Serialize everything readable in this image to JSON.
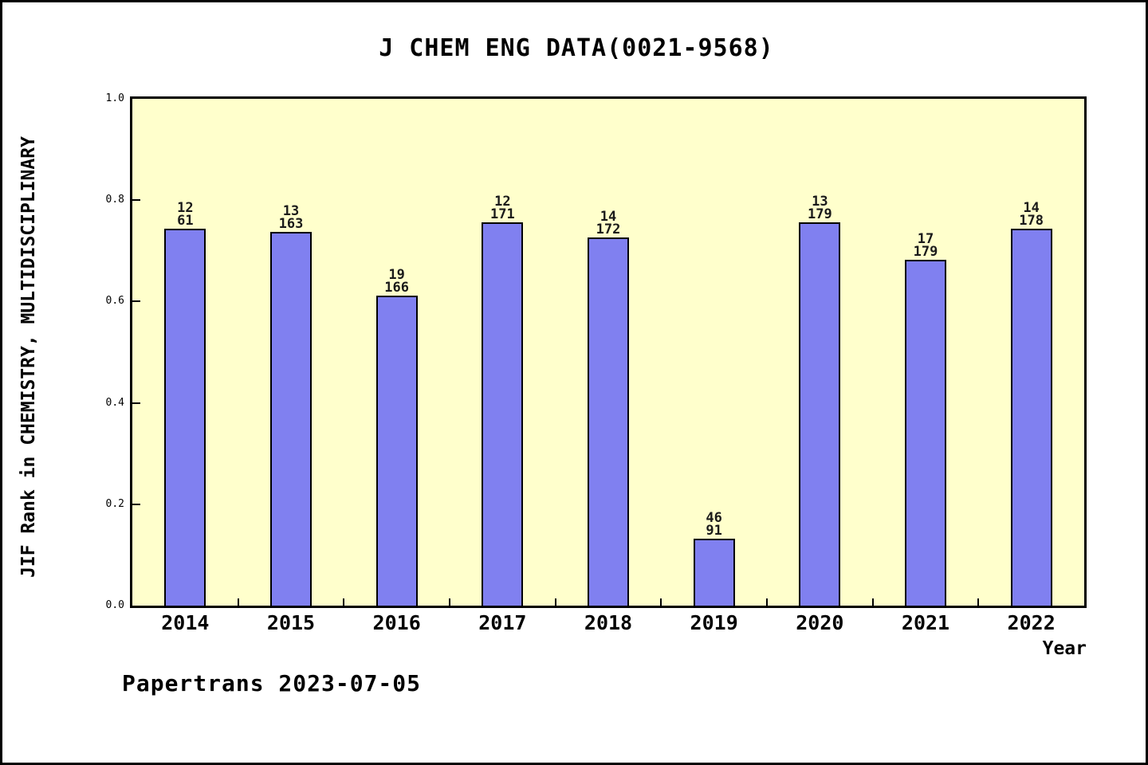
{
  "title": "J CHEM ENG DATA(0021-9568)",
  "footer": "Papertrans 2023-07-05",
  "colors": {
    "page_bg": "#ffffff",
    "frame": "#000000",
    "plot_bg": "#ffffcc",
    "bar_fill": "#8080f0",
    "bar_edge": "#000000",
    "text": "#000000"
  },
  "chart_data": {
    "type": "bar",
    "title": "J CHEM ENG DATA(0021-9568)",
    "xlabel": "Year",
    "ylabel": "JIF Rank in CHEMISTRY, MULTIDISCIPLINARY",
    "ylim": [
      0.0,
      1.0
    ],
    "yticks": [
      "0.0",
      "0.2",
      "0.4",
      "0.6",
      "0.8",
      "1.0"
    ],
    "grid": false,
    "legend_position": "none",
    "categories": [
      "2014",
      "2015",
      "2016",
      "2017",
      "2018",
      "2019",
      "2020",
      "2021",
      "2022"
    ],
    "values": [
      0.743,
      0.738,
      0.611,
      0.757,
      0.727,
      0.132,
      0.757,
      0.682,
      0.743
    ],
    "bar_labels": [
      [
        "12",
        "61"
      ],
      [
        "13",
        "163"
      ],
      [
        "19",
        "166"
      ],
      [
        "12",
        "171"
      ],
      [
        "14",
        "172"
      ],
      [
        "46",
        "91"
      ],
      [
        "13",
        "179"
      ],
      [
        "17",
        "179"
      ],
      [
        "14",
        "178"
      ]
    ]
  }
}
